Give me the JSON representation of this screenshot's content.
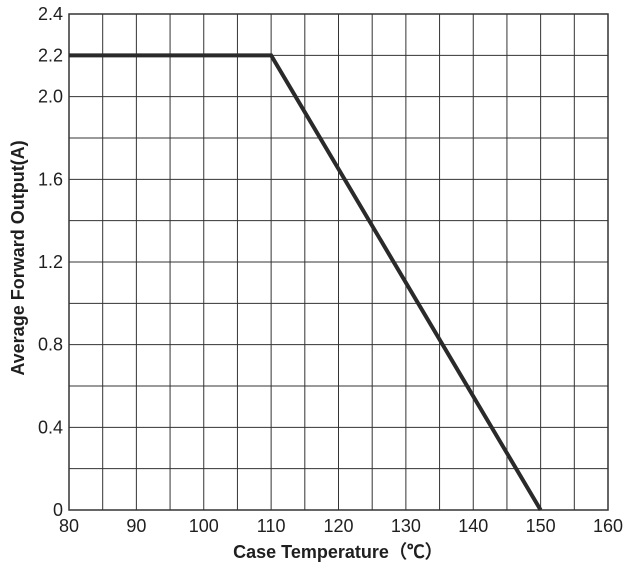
{
  "chart_data": {
    "type": "line",
    "title": "",
    "xlabel": "Case Temperature（℃）",
    "ylabel": "Average Forward Output(A)",
    "xlim": [
      80,
      160
    ],
    "ylim": [
      0,
      2.4
    ],
    "x_ticks": [
      80,
      90,
      100,
      110,
      120,
      130,
      140,
      150,
      160
    ],
    "x_tick_labels": [
      "80",
      "90",
      "100",
      "110",
      "120",
      "130",
      "140",
      "150",
      "160"
    ],
    "y_ticks": [
      0,
      0.4,
      0.8,
      1.2,
      1.6,
      2.0,
      2.2,
      2.4
    ],
    "y_tick_labels": [
      "0",
      "0.4",
      "0.8",
      "1.2",
      "1.6",
      "2.0",
      "2.2",
      "2.4"
    ],
    "grid": true,
    "x_grid_step": 5,
    "y_grid_step": 0.2,
    "legend": "none",
    "colors": {
      "line": "#2a2a2a",
      "grid": "#333333",
      "frame": "#333333",
      "text": "#1f1f1f"
    },
    "series": [
      {
        "x": [
          80,
          110,
          150
        ],
        "y": [
          2.2,
          2.2,
          0
        ]
      }
    ]
  }
}
